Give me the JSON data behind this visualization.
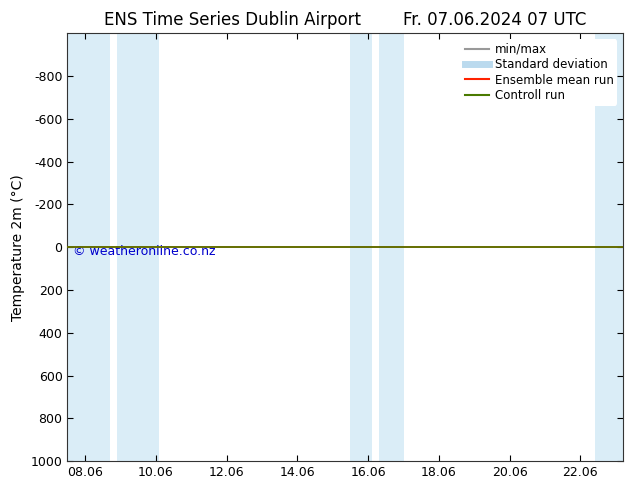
{
  "title_left": "ENS Time Series Dublin Airport",
  "title_right": "Fr. 07.06.2024 07 UTC",
  "ylabel": "Temperature 2m (°C)",
  "ylim": [
    -1000,
    1000
  ],
  "yticks": [
    -800,
    -600,
    -400,
    -200,
    0,
    200,
    400,
    600,
    800,
    1000
  ],
  "xtick_labels": [
    "08.06",
    "10.06",
    "12.06",
    "14.06",
    "16.06",
    "18.06",
    "20.06",
    "22.06"
  ],
  "xtick_positions": [
    8,
    10,
    12,
    14,
    16,
    18,
    20,
    22
  ],
  "x_min": 7.5,
  "x_max": 23.2,
  "bg_color": "#ffffff",
  "plot_bg_color": "#ffffff",
  "shaded_bands": [
    [
      7.5,
      8.7
    ],
    [
      8.9,
      10.1
    ],
    [
      15.5,
      16.1
    ],
    [
      16.3,
      17.0
    ],
    [
      22.4,
      23.2
    ]
  ],
  "shaded_color": "#daedf7",
  "green_line_color": "#4a7a00",
  "red_line_color": "#ff2200",
  "copyright_text": "© weatheronline.co.nz",
  "copyright_color": "#0000cc",
  "copyright_fontsize": 9,
  "legend_items": [
    {
      "label": "min/max",
      "color": "#999999",
      "lw": 1.5
    },
    {
      "label": "Standard deviation",
      "color": "#bbdaee",
      "lw": 5
    },
    {
      "label": "Ensemble mean run",
      "color": "#ff2200",
      "lw": 1.5
    },
    {
      "label": "Controll run",
      "color": "#4a7a00",
      "lw": 1.5
    }
  ],
  "title_fontsize": 12,
  "ylabel_fontsize": 10,
  "tick_fontsize": 9,
  "legend_fontsize": 8.5
}
